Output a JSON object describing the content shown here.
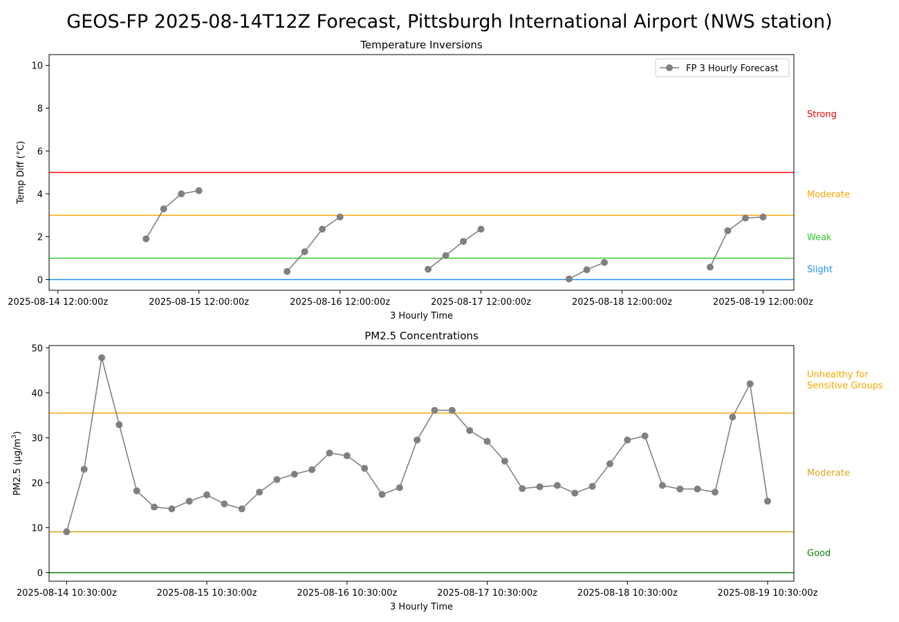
{
  "figure": {
    "suptitle": "GEOS-FP 2025-08-14T12Z Forecast, Pittsburgh International Airport (NWS station)"
  },
  "chart_data": [
    {
      "type": "line",
      "title": "Temperature Inversions",
      "xlabel": "3 Hourly Time",
      "ylabel": "Temp Diff (°C)",
      "xlim": [
        -0.5,
        41.75
      ],
      "ylim": [
        -0.5,
        10.5
      ],
      "yticks": [
        0,
        2,
        4,
        6,
        8,
        10
      ],
      "xticks": [
        {
          "x": 0,
          "label": "2025-08-14 12:00:00z"
        },
        {
          "x": 8,
          "label": "2025-08-15 12:00:00z"
        },
        {
          "x": 16,
          "label": "2025-08-16 12:00:00z"
        },
        {
          "x": 24,
          "label": "2025-08-17 12:00:00z"
        },
        {
          "x": 32,
          "label": "2025-08-18 12:00:00z"
        },
        {
          "x": 40,
          "label": "2025-08-19 12:00:00z"
        }
      ],
      "legend": {
        "position": "top-right",
        "label": "FP 3 Hourly Forecast"
      },
      "series_color": "#808080",
      "segments": [
        [
          [
            5,
            1.9
          ],
          [
            6,
            3.3
          ],
          [
            7,
            4.0
          ],
          [
            8,
            4.15
          ]
        ],
        [
          [
            13,
            0.38
          ],
          [
            14,
            1.3
          ],
          [
            15,
            2.35
          ],
          [
            16,
            2.92
          ]
        ],
        [
          [
            21,
            0.48
          ],
          [
            22,
            1.12
          ],
          [
            23,
            1.78
          ],
          [
            24,
            2.35
          ]
        ],
        [
          [
            29,
            0.03
          ],
          [
            30,
            0.46
          ],
          [
            31,
            0.8
          ]
        ],
        [
          [
            37,
            0.58
          ],
          [
            38,
            2.28
          ],
          [
            39,
            2.87
          ],
          [
            40,
            2.92
          ]
        ]
      ],
      "thresholds": [
        {
          "y": 0,
          "color": "#1e90ff",
          "label": "Slight",
          "label_y": 0.5
        },
        {
          "y": 1,
          "color": "#32cd32",
          "label": "Weak",
          "label_y": 2.0
        },
        {
          "y": 3,
          "color": "#ffa500",
          "label": "Moderate",
          "label_y": 4.0
        },
        {
          "y": 5,
          "color": "#ff0000",
          "label": "Strong",
          "label_y": 7.75
        }
      ]
    },
    {
      "type": "line",
      "title": "PM2.5 Concentrations",
      "xlabel": "3 Hourly Time",
      "ylabel": "PM2.5 (µg/m",
      "ylabel_sup": "3",
      "ylabel_end": ")",
      "xlim": [
        -1,
        41.5
      ],
      "ylim": [
        -1.9,
        50.5
      ],
      "yticks": [
        0,
        10,
        20,
        30,
        40,
        50
      ],
      "xticks": [
        {
          "x": 0,
          "label": "2025-08-14 10:30:00z"
        },
        {
          "x": 8,
          "label": "2025-08-15 10:30:00z"
        },
        {
          "x": 16,
          "label": "2025-08-16 10:30:00z"
        },
        {
          "x": 24,
          "label": "2025-08-17 10:30:00z"
        },
        {
          "x": 32,
          "label": "2025-08-18 10:30:00z"
        },
        {
          "x": 40,
          "label": "2025-08-19 10:30:00z"
        }
      ],
      "series_color": "#808080",
      "values": [
        9.1,
        23.0,
        47.8,
        32.9,
        18.2,
        14.6,
        14.2,
        15.9,
        17.3,
        15.3,
        14.2,
        17.9,
        20.7,
        21.9,
        22.9,
        26.6,
        26.0,
        23.2,
        17.4,
        18.9,
        29.5,
        36.1,
        36.1,
        31.6,
        29.2,
        24.8,
        18.7,
        19.1,
        19.4,
        17.7,
        19.2,
        24.2,
        29.5,
        30.4,
        19.4,
        18.6,
        18.6,
        17.9,
        34.6,
        42.0,
        15.9
      ],
      "thresholds": [
        {
          "y": 0,
          "color": "#008000",
          "label": "Good",
          "label_y": 4.5
        },
        {
          "y": 9.1,
          "color": "#daa520",
          "label": "Moderate",
          "label_y": 22.3
        },
        {
          "y": 35.5,
          "color": "#ffa500",
          "label": "Unhealthy for\nSensitive Groups",
          "label_y": 43.0
        }
      ]
    }
  ]
}
